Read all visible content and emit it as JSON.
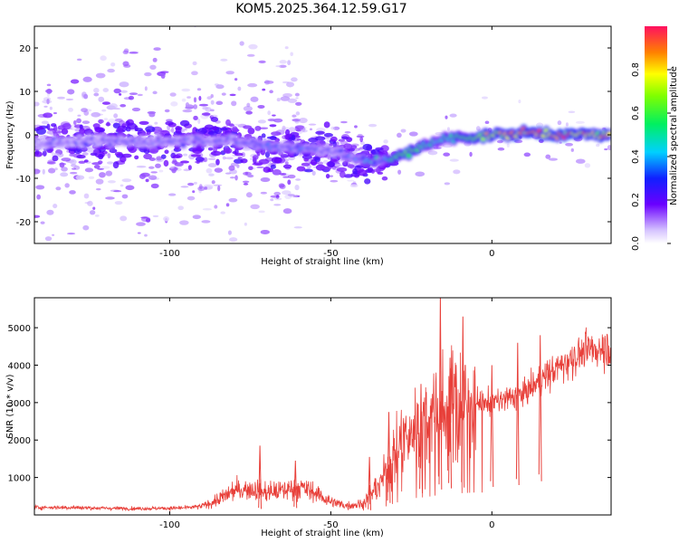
{
  "title": "KOM5.2025.364.12.59.G17",
  "chart_data": [
    {
      "type": "heatmap",
      "xlabel": "Height of straight line (km)",
      "ylabel": "Frequency (Hz)",
      "xlim": [
        -142,
        37
      ],
      "ylim": [
        -25,
        25
      ],
      "x_ticks": [
        -100,
        -50,
        0
      ],
      "y_ticks": [
        -20,
        -10,
        0,
        10,
        20
      ],
      "x_tick_labels": [
        "-100",
        "-50",
        "0"
      ],
      "y_tick_labels": [
        "-20",
        "-10",
        "0",
        "10",
        "20"
      ],
      "colorbar": {
        "label": "Normalized spectral amplitude",
        "range": [
          0,
          1
        ],
        "ticks": [
          0.0,
          0.2,
          0.4,
          0.6,
          0.8
        ],
        "tick_labels": [
          "0.0",
          "0.2",
          "0.4",
          "0.6",
          "0.8"
        ]
      },
      "ridge": {
        "x": [
          -142,
          -120,
          -100,
          -90,
          -80,
          -70,
          -60,
          -50,
          -45,
          -40,
          -35,
          -30,
          -25,
          -20,
          -15,
          -10,
          -5,
          0,
          5,
          10,
          15,
          20,
          25,
          30,
          37
        ],
        "freq_hz": [
          -2.0,
          -1.5,
          -1.5,
          -1.0,
          -1.5,
          -2.5,
          -3.0,
          -3.5,
          -5.0,
          -6.0,
          -6.0,
          -5.0,
          -4.0,
          -2.0,
          -1.0,
          -0.5,
          -0.5,
          0.0,
          0.0,
          0.5,
          0.5,
          0.0,
          0.0,
          0.0,
          0.0
        ],
        "peak_amplitude": [
          0.25,
          0.25,
          0.3,
          0.28,
          0.3,
          0.35,
          0.35,
          0.3,
          0.35,
          0.4,
          0.5,
          0.55,
          0.6,
          0.5,
          0.45,
          0.55,
          0.7,
          0.75,
          0.8,
          0.85,
          0.85,
          0.85,
          0.85,
          0.8,
          0.75
        ]
      }
    },
    {
      "type": "line",
      "xlabel": "Height of straight line (km)",
      "ylabel": "SNR (10 * v/v)",
      "xlim": [
        -142,
        37
      ],
      "ylim": [
        0,
        5800
      ],
      "x_ticks": [
        -100,
        -50,
        0
      ],
      "y_ticks": [
        1000,
        2000,
        3000,
        4000,
        5000
      ],
      "x_tick_labels": [
        "-100",
        "-50",
        "0"
      ],
      "y_tick_labels": [
        "1000",
        "2000",
        "3000",
        "4000",
        "5000"
      ],
      "series": [
        {
          "name": "SNR",
          "color": "#e8403a",
          "x": [
            -142,
            -130,
            -120,
            -110,
            -100,
            -95,
            -90,
            -85,
            -80,
            -75,
            -70,
            -65,
            -60,
            -55,
            -50,
            -45,
            -40,
            -35,
            -30,
            -25,
            -20,
            -15,
            -10,
            -5,
            0,
            5,
            10,
            15,
            20,
            25,
            30,
            37
          ],
          "y": [
            200,
            200,
            180,
            170,
            180,
            190,
            230,
            400,
            650,
            700,
            600,
            650,
            750,
            600,
            350,
            250,
            300,
            800,
            1600,
            2200,
            2400,
            2800,
            2900,
            3000,
            3000,
            3100,
            3250,
            3600,
            3900,
            4200,
            4400,
            4500
          ]
        }
      ],
      "spikes": [
        {
          "x": -72,
          "y": 1850
        },
        {
          "x": -61,
          "y": 1450
        },
        {
          "x": -38,
          "y": 1550
        },
        {
          "x": -32,
          "y": 2750
        },
        {
          "x": -22,
          "y": 3500
        },
        {
          "x": -16,
          "y": 5850
        },
        {
          "x": -13,
          "y": 4200
        },
        {
          "x": -9,
          "y": 5300
        },
        {
          "x": 0,
          "y": 4000
        },
        {
          "x": 8,
          "y": 4600
        },
        {
          "x": 15,
          "y": 4800
        }
      ]
    }
  ]
}
